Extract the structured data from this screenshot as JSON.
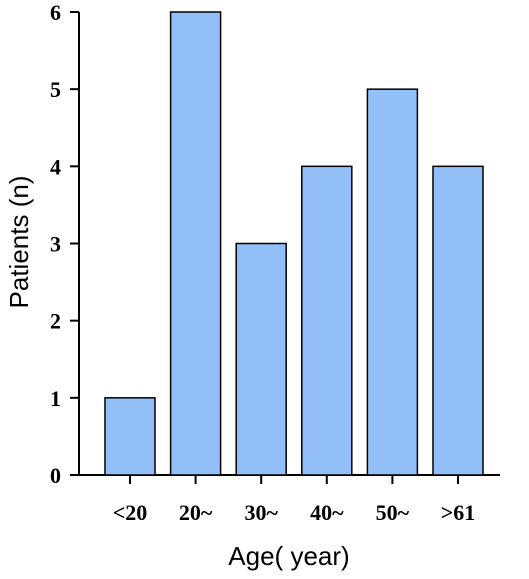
{
  "chart_data": {
    "type": "bar",
    "categories": [
      "<20",
      "20~",
      "30~",
      "40~",
      "50~",
      ">61"
    ],
    "values": [
      1,
      6,
      3,
      4,
      5,
      4
    ],
    "xlabel": "Age( year)",
    "ylabel": "Patients (n)",
    "ylim": [
      0,
      6
    ],
    "yticks": [
      0,
      1,
      2,
      3,
      4,
      5,
      6
    ],
    "grid": false,
    "bar_color": "#93bff9",
    "bar_edge_color": "#000000"
  }
}
